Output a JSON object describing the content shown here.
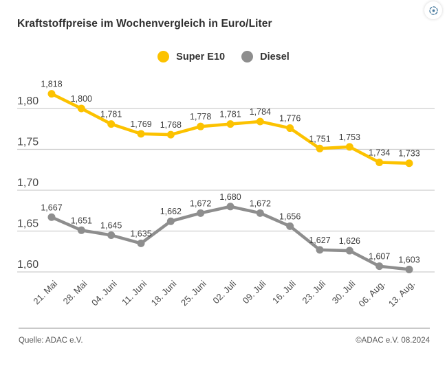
{
  "chart_data": {
    "type": "line",
    "title": "Kraftstoffpreise im Wochenvergleich in Euro/Liter",
    "unit": "Euro/Liter",
    "categories": [
      "21. Mai",
      "28. Mai",
      "04. Juni",
      "11. Juni",
      "18. Juni",
      "25. Juni",
      "02. Juli",
      "09. Juli",
      "16. Juli",
      "23. Juli",
      "30. Juli",
      "06. Aug.",
      "13. Aug."
    ],
    "series": [
      {
        "name": "Super E10",
        "color": "#FCC200",
        "values": [
          1.818,
          1.8,
          1.781,
          1.769,
          1.768,
          1.778,
          1.781,
          1.784,
          1.776,
          1.751,
          1.753,
          1.734,
          1.733
        ],
        "labels": [
          "1,818",
          "1,800",
          "1,781",
          "1,769",
          "1,768",
          "1,778",
          "1,781",
          "1,784",
          "1,776",
          "1,751",
          "1,753",
          "1,734",
          "1,733"
        ]
      },
      {
        "name": "Diesel",
        "color": "#8E8E8E",
        "values": [
          1.667,
          1.651,
          1.645,
          1.635,
          1.662,
          1.672,
          1.68,
          1.672,
          1.656,
          1.627,
          1.626,
          1.607,
          1.603
        ],
        "labels": [
          "1,667",
          "1,651",
          "1,645",
          "1,635",
          "1,662",
          "1,672",
          "1,680",
          "1,672",
          "1,656",
          "1,627",
          "1,626",
          "1,607",
          "1,603"
        ]
      }
    ],
    "yticks": {
      "values": [
        1.8,
        1.75,
        1.7,
        1.65,
        1.6
      ],
      "labels": [
        "1,80",
        "1,75",
        "1,70",
        "1,65",
        "1,60"
      ]
    },
    "ylim": [
      1.575,
      1.84
    ],
    "grid": "horizontal",
    "legend_position": "top-center",
    "x_label_rotation": -45
  },
  "icons": {
    "region_capture": {
      "name": "region-capture-icon",
      "color": "#4d7ea1"
    }
  },
  "colors": {
    "accent_yellow": "#FCC200",
    "accent_gray": "#8E8E8E",
    "gridline": "#CDCDCD",
    "axis_text": "#4A4A4A",
    "label_text": "#3C3C3C"
  },
  "footer": {
    "source": "Quelle: ADAC e.V.",
    "copyright": "©ADAC e.V. 08.2024"
  }
}
